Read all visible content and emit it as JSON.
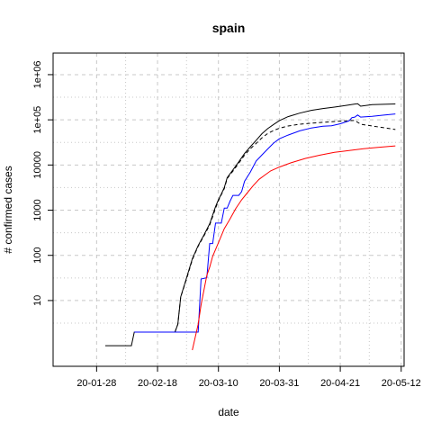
{
  "chart_data": {
    "type": "line",
    "title": "spain",
    "xlabel": "date",
    "ylabel": "# confirmed cases",
    "x_ticks": [
      {
        "date": "2020-01-28",
        "label": "20-01-28"
      },
      {
        "date": "2020-02-18",
        "label": "20-02-18"
      },
      {
        "date": "2020-03-10",
        "label": "20-03-10"
      },
      {
        "date": "2020-03-31",
        "label": "20-03-31"
      },
      {
        "date": "2020-04-21",
        "label": "20-04-21"
      },
      {
        "date": "2020-05-12",
        "label": "20-05-12"
      }
    ],
    "y_ticks": [
      {
        "value": 10,
        "label": "10"
      },
      {
        "value": 100,
        "label": "100"
      },
      {
        "value": 1000,
        "label": "1000"
      },
      {
        "value": 10000,
        "label": "10000"
      },
      {
        "value": 100000,
        "label": "1e+05"
      },
      {
        "value": 1000000,
        "label": "1e+06"
      }
    ],
    "xlim": [
      "2020-01-13",
      "2020-05-13"
    ],
    "ylim": [
      0.35,
      3000000
    ],
    "y_scale": "log",
    "grid": true,
    "colors": {
      "black": "#000000",
      "blue": "#0000ff",
      "red": "#ff0000",
      "grid": "#c8c8c8"
    },
    "series": [
      {
        "color": "#000000",
        "style": "solid",
        "points": [
          [
            "2020-01-31",
            1
          ],
          [
            "2020-02-09",
            1
          ],
          [
            "2020-02-10",
            2
          ],
          [
            "2020-02-24",
            2
          ],
          [
            "2020-02-25",
            3
          ],
          [
            "2020-02-26",
            12
          ],
          [
            "2020-02-28",
            32
          ],
          [
            "2020-03-01",
            84
          ],
          [
            "2020-03-03",
            165
          ],
          [
            "2020-03-05",
            282
          ],
          [
            "2020-03-07",
            500
          ],
          [
            "2020-03-09",
            1200
          ],
          [
            "2020-03-10",
            1695
          ],
          [
            "2020-03-11",
            2277
          ],
          [
            "2020-03-12",
            3146
          ],
          [
            "2020-03-13",
            5232
          ],
          [
            "2020-03-14",
            6391
          ],
          [
            "2020-03-15",
            7798
          ],
          [
            "2020-03-17",
            11748
          ],
          [
            "2020-03-19",
            17963
          ],
          [
            "2020-03-21",
            25374
          ],
          [
            "2020-03-23",
            35136
          ],
          [
            "2020-03-25",
            49515
          ],
          [
            "2020-03-27",
            64059
          ],
          [
            "2020-03-29",
            78797
          ],
          [
            "2020-03-31",
            95923
          ],
          [
            "2020-04-03",
            117710
          ],
          [
            "2020-04-07",
            140510
          ],
          [
            "2020-04-11",
            161852
          ],
          [
            "2020-04-15",
            177633
          ],
          [
            "2020-04-19",
            191726
          ],
          [
            "2020-04-23",
            208389
          ],
          [
            "2020-04-26",
            223759
          ],
          [
            "2020-04-27",
            226629
          ],
          [
            "2020-04-28",
            200194
          ],
          [
            "2020-05-02",
            216582
          ],
          [
            "2020-05-06",
            220325
          ],
          [
            "2020-05-10",
            224350
          ]
        ]
      },
      {
        "color": "#000000",
        "style": "dashed",
        "points": [
          [
            "2020-02-24",
            2
          ],
          [
            "2020-02-25",
            3
          ],
          [
            "2020-02-26",
            12
          ],
          [
            "2020-02-28",
            30
          ],
          [
            "2020-03-01",
            80
          ],
          [
            "2020-03-03",
            160
          ],
          [
            "2020-03-05",
            270
          ],
          [
            "2020-03-07",
            470
          ],
          [
            "2020-03-09",
            1100
          ],
          [
            "2020-03-10",
            1620
          ],
          [
            "2020-03-11",
            2200
          ],
          [
            "2020-03-12",
            3000
          ],
          [
            "2020-03-13",
            5000
          ],
          [
            "2020-03-14",
            6100
          ],
          [
            "2020-03-15",
            7300
          ],
          [
            "2020-03-17",
            11000
          ],
          [
            "2020-03-19",
            16500
          ],
          [
            "2020-03-21",
            23000
          ],
          [
            "2020-03-23",
            30000
          ],
          [
            "2020-03-25",
            40000
          ],
          [
            "2020-03-27",
            50000
          ],
          [
            "2020-03-29",
            58000
          ],
          [
            "2020-03-31",
            65000
          ],
          [
            "2020-04-03",
            73000
          ],
          [
            "2020-04-07",
            80000
          ],
          [
            "2020-04-11",
            84000
          ],
          [
            "2020-04-15",
            88000
          ],
          [
            "2020-04-19",
            92000
          ],
          [
            "2020-04-23",
            95000
          ],
          [
            "2020-04-26",
            97000
          ],
          [
            "2020-04-28",
            80000
          ],
          [
            "2020-05-02",
            73000
          ],
          [
            "2020-05-06",
            67000
          ],
          [
            "2020-05-10",
            61000
          ]
        ]
      },
      {
        "color": "#0000ff",
        "style": "solid",
        "points": [
          [
            "2020-02-10",
            2
          ],
          [
            "2020-03-03",
            2
          ],
          [
            "2020-03-04",
            30
          ],
          [
            "2020-03-06",
            32
          ],
          [
            "2020-03-07",
            183
          ],
          [
            "2020-03-08",
            183
          ],
          [
            "2020-03-09",
            517
          ],
          [
            "2020-03-10",
            517
          ],
          [
            "2020-03-11",
            517
          ],
          [
            "2020-03-12",
            1107
          ],
          [
            "2020-03-13",
            1107
          ],
          [
            "2020-03-14",
            1588
          ],
          [
            "2020-03-15",
            2125
          ],
          [
            "2020-03-17",
            2125
          ],
          [
            "2020-03-18",
            2575
          ],
          [
            "2020-03-19",
            4340
          ],
          [
            "2020-03-21",
            7015
          ],
          [
            "2020-03-23",
            12285
          ],
          [
            "2020-03-25",
            16780
          ],
          [
            "2020-03-27",
            22647
          ],
          [
            "2020-03-29",
            30513
          ],
          [
            "2020-03-31",
            38080
          ],
          [
            "2020-04-03",
            46000
          ],
          [
            "2020-04-07",
            57000
          ],
          [
            "2020-04-11",
            66000
          ],
          [
            "2020-04-15",
            72000
          ],
          [
            "2020-04-18",
            74000
          ],
          [
            "2020-04-21",
            82000
          ],
          [
            "2020-04-24",
            95000
          ],
          [
            "2020-04-25",
            112000
          ],
          [
            "2020-04-26",
            115000
          ],
          [
            "2020-04-27",
            128000
          ],
          [
            "2020-04-28",
            115000
          ],
          [
            "2020-05-02",
            120000
          ],
          [
            "2020-05-06",
            127000
          ],
          [
            "2020-05-10",
            135000
          ]
        ]
      },
      {
        "color": "#ff0000",
        "style": "solid",
        "points": [
          [
            "2020-03-01",
            0.8
          ],
          [
            "2020-03-03",
            3
          ],
          [
            "2020-03-04",
            8
          ],
          [
            "2020-03-06",
            36
          ],
          [
            "2020-03-07",
            55
          ],
          [
            "2020-03-08",
            95
          ],
          [
            "2020-03-10",
            190
          ],
          [
            "2020-03-12",
            390
          ],
          [
            "2020-03-14",
            640
          ],
          [
            "2020-03-16",
            1100
          ],
          [
            "2020-03-18",
            1700
          ],
          [
            "2020-03-20",
            2450
          ],
          [
            "2020-03-22",
            3500
          ],
          [
            "2020-03-24",
            4800
          ],
          [
            "2020-03-26",
            6000
          ],
          [
            "2020-03-28",
            7400
          ],
          [
            "2020-03-31",
            9000
          ],
          [
            "2020-04-04",
            11200
          ],
          [
            "2020-04-09",
            14000
          ],
          [
            "2020-04-14",
            16500
          ],
          [
            "2020-04-19",
            19000
          ],
          [
            "2020-04-24",
            21000
          ],
          [
            "2020-04-29",
            23000
          ],
          [
            "2020-05-04",
            24500
          ],
          [
            "2020-05-10",
            26500
          ]
        ]
      }
    ]
  }
}
